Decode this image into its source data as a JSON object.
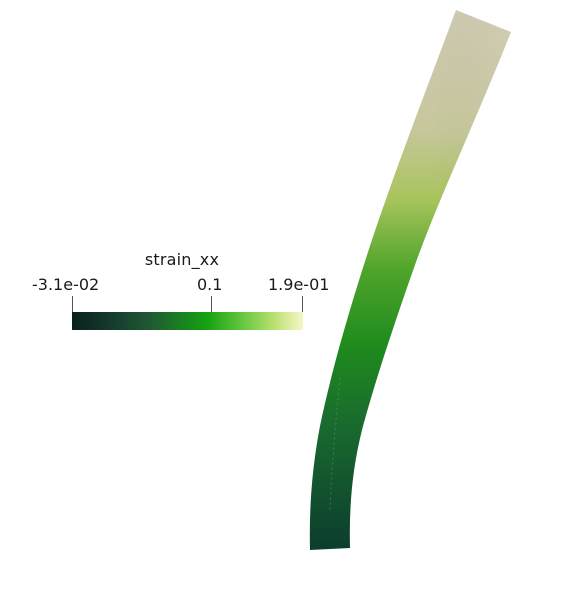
{
  "legend": {
    "title": "strain_xx",
    "min_label": "-3.1e-02",
    "mid_label": "0.1",
    "max_label": "1.9e-01",
    "colormap": [
      "#0a1f1d",
      "#163c2f",
      "#1f5c32",
      "#15a012",
      "#5bc338",
      "#bde173",
      "#f5f8c7"
    ]
  },
  "scene": {
    "background": "#ffffff",
    "object": "bent-beam",
    "colors": {
      "tip": "#cdc8ae",
      "upper": "#b9ca7a",
      "middle": "#1f8a1c",
      "base": "#0e3f2f"
    }
  }
}
